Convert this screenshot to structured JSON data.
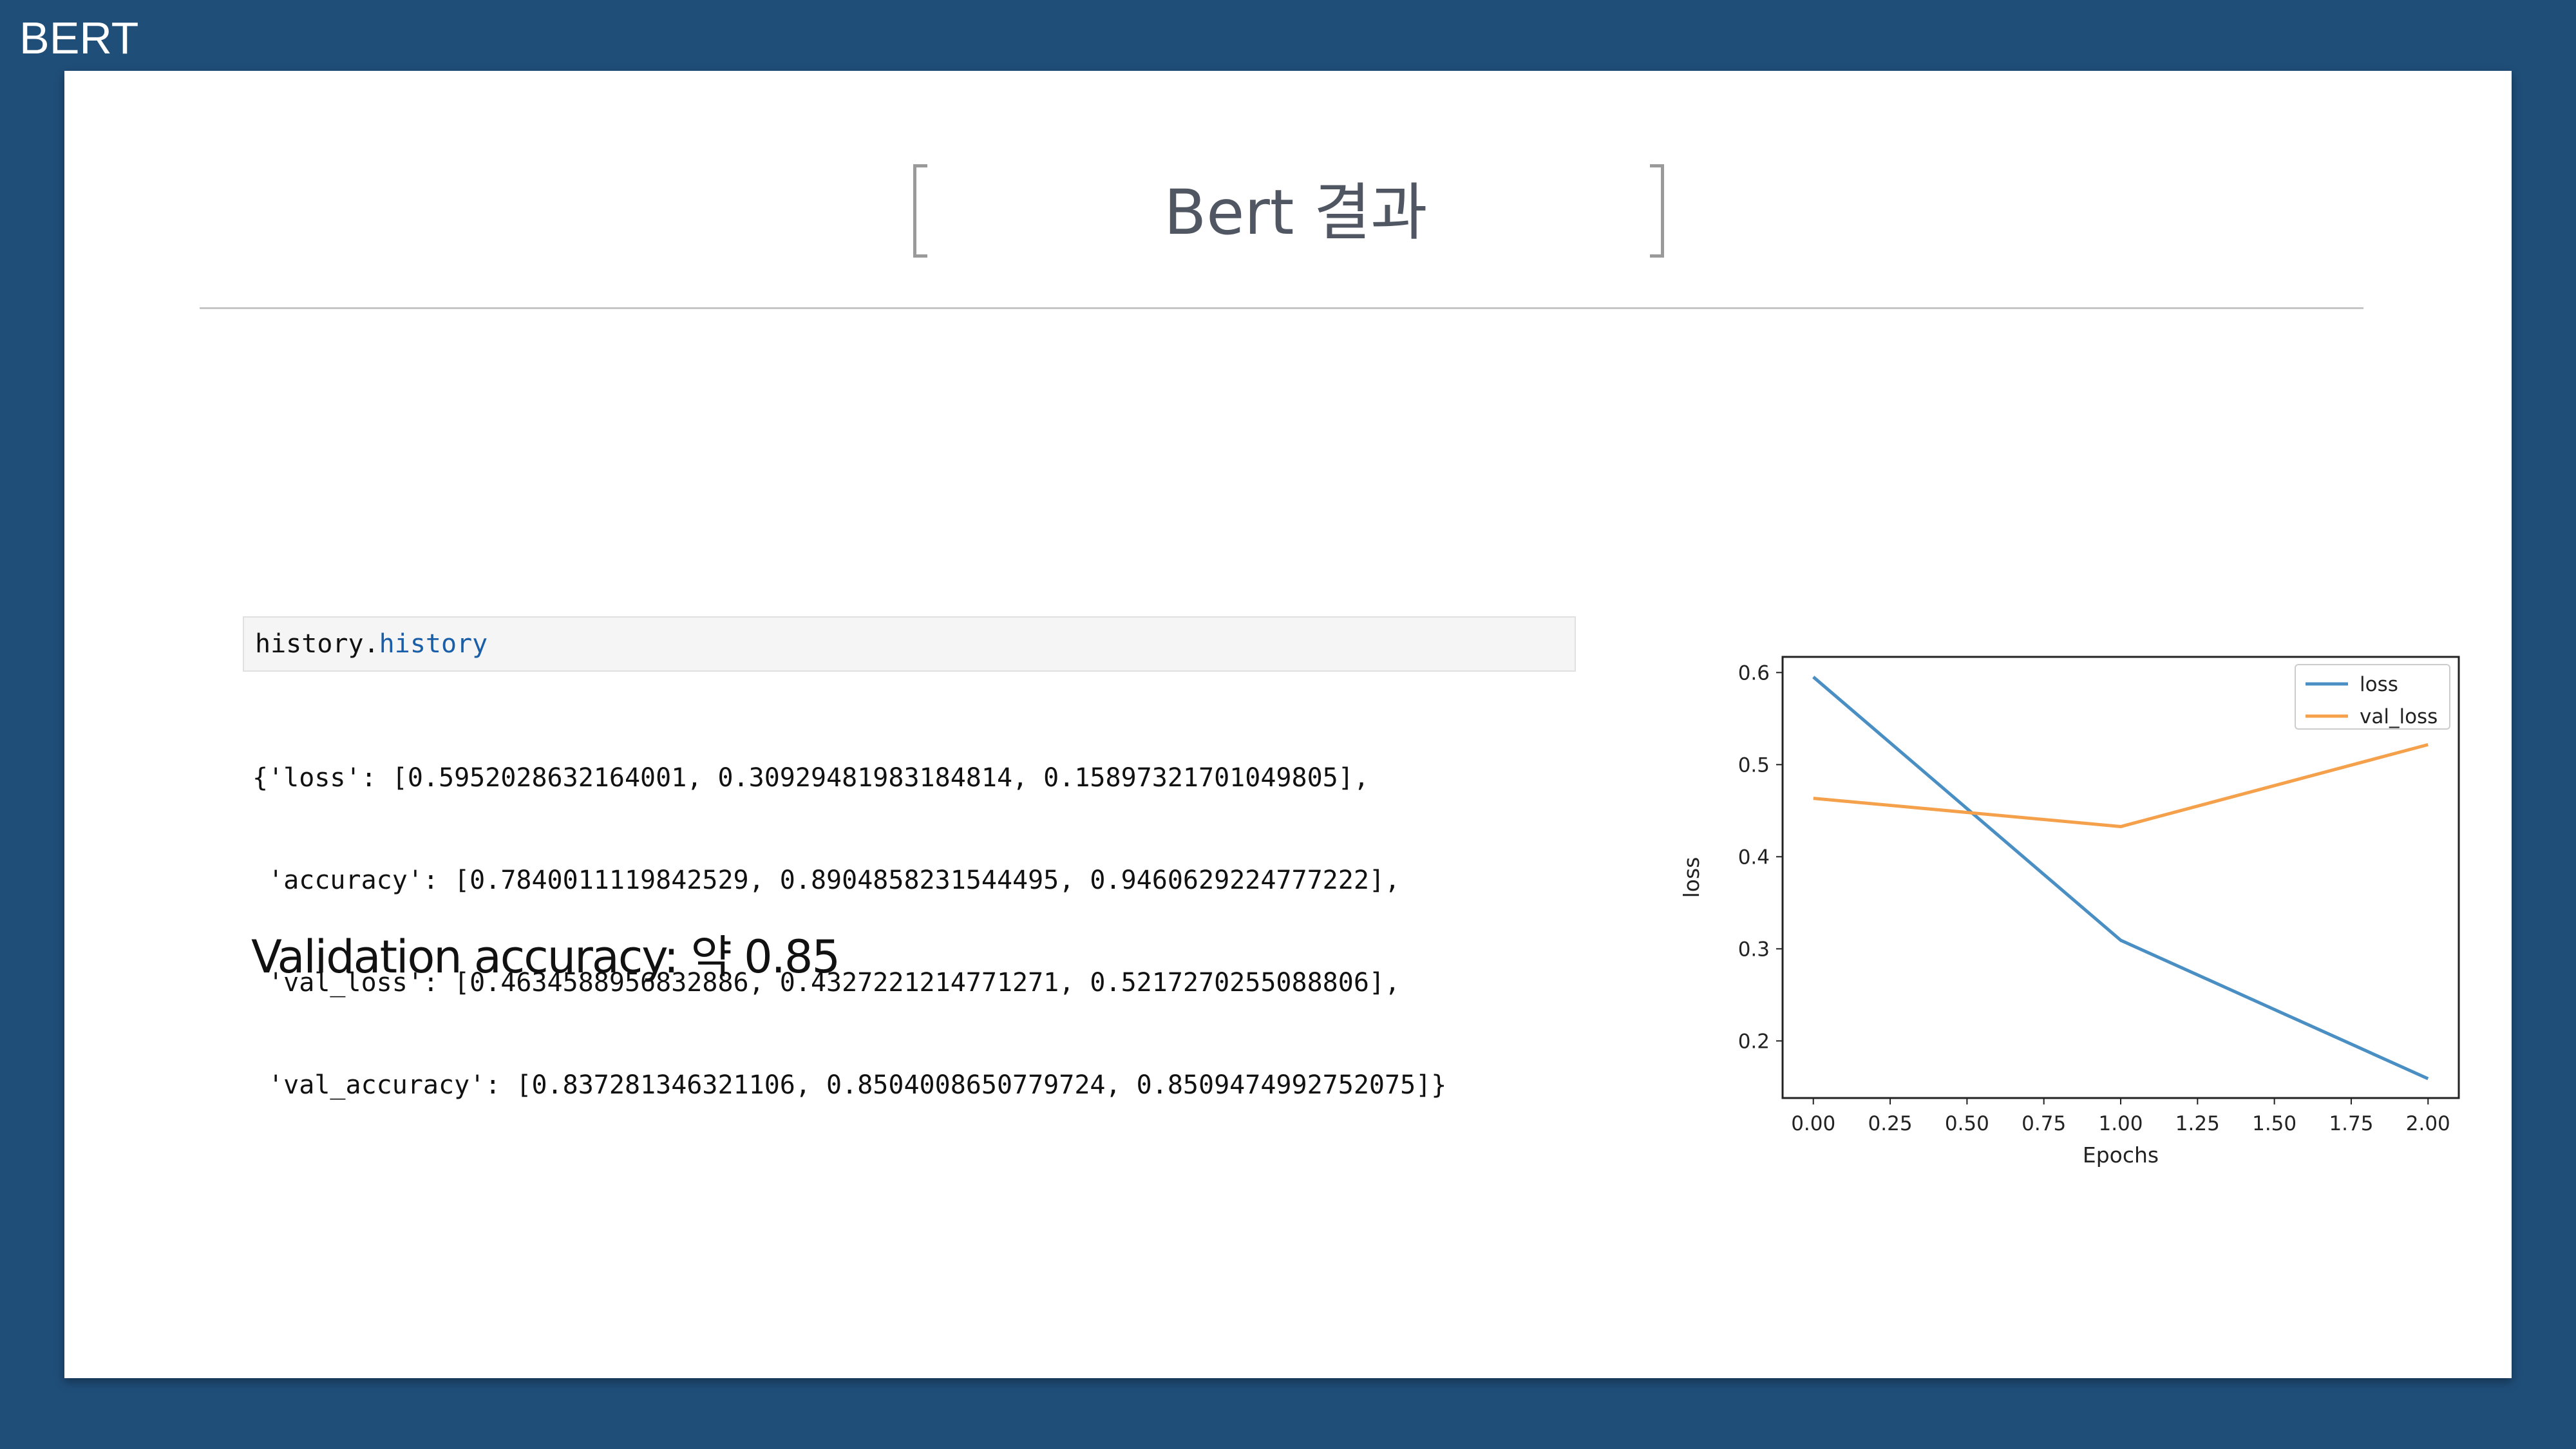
{
  "window": {
    "title": "BERT"
  },
  "slide": {
    "title": "Bert 결과",
    "code_input": {
      "object": "history.",
      "attribute": "history"
    },
    "code_output": [
      "{'loss': [0.5952028632164001, 0.30929481983184814, 0.15897321701049805],",
      " 'accuracy': [0.7840011119842529, 0.8904858231544495, 0.9460629224777222],",
      " 'val_loss': [0.4634588956832886, 0.4327221214771271, 0.5217270255088806],",
      " 'val_accuracy': [0.837281346321106, 0.8504008650779724, 0.8509474992752075]}"
    ],
    "caption": "Validation accuracy: 약 0.85"
  },
  "chart_data": {
    "type": "line",
    "title": "",
    "xlabel": "Epochs",
    "ylabel": "loss",
    "x": [
      0,
      1,
      2
    ],
    "xlim": [
      -0.1,
      2.1
    ],
    "ylim": [
      0.138,
      0.617
    ],
    "xticks": [
      "0.00",
      "0.25",
      "0.50",
      "0.75",
      "1.00",
      "1.25",
      "1.50",
      "1.75",
      "2.00"
    ],
    "yticks": [
      "0.2",
      "0.3",
      "0.4",
      "0.5",
      "0.6"
    ],
    "grid": false,
    "legend_position": "top-right",
    "series": [
      {
        "name": "loss",
        "color": "#4a8fc4",
        "values": [
          0.5952028632164001,
          0.30929481983184814,
          0.15897321701049805
        ]
      },
      {
        "name": "val_loss",
        "color": "#f5a04a",
        "values": [
          0.4634588956832886,
          0.4327221214771271,
          0.5217270255088806
        ]
      }
    ]
  }
}
